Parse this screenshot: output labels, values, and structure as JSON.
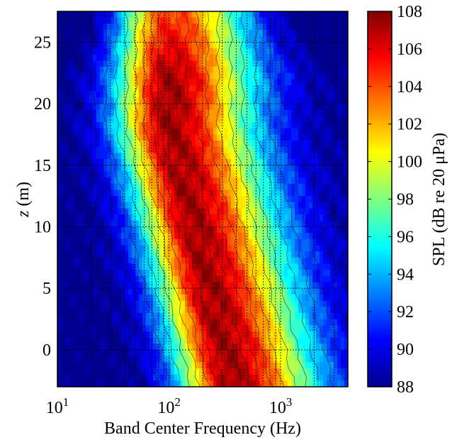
{
  "chart_data": {
    "type": "heatmap",
    "title": "",
    "xlabel": "Band Center Frequency (Hz)",
    "ylabel_italic": "z",
    "ylabel_unit": " (m)",
    "colorbar_label": "SPL (dB re 20 μPa)",
    "x_scale": "log",
    "xlim": [
      10,
      4000
    ],
    "ylim": [
      -3,
      27.5
    ],
    "clim": [
      88,
      108
    ],
    "x_ticks": [
      {
        "value": 10,
        "base": "10",
        "exp": "1"
      },
      {
        "value": 100,
        "base": "10",
        "exp": "2"
      },
      {
        "value": 1000,
        "base": "10",
        "exp": "3"
      }
    ],
    "y_ticks": [
      "0",
      "5",
      "10",
      "15",
      "20",
      "25"
    ],
    "colorbar_ticks": [
      "88",
      "90",
      "92",
      "94",
      "96",
      "98",
      "100",
      "102",
      "104",
      "106",
      "108"
    ],
    "grid": true,
    "colormap": "jet",
    "colormap_stops": [
      "#00008f",
      "#0000ff",
      "#0080ff",
      "#00ffff",
      "#80ff80",
      "#ffff00",
      "#ff8000",
      "#ff0000",
      "#800000"
    ],
    "description_of_field": {
      "peak_frequency_upper_hz": 100,
      "peak_frequency_lower_hz": 400,
      "peak_spl_db": 107.5,
      "floor_spl_db": 88
    }
  }
}
